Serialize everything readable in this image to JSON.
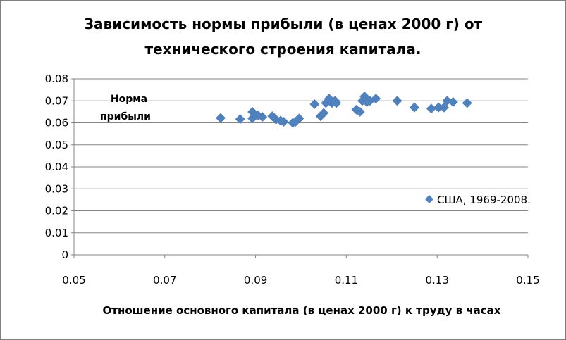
{
  "chart_data": {
    "type": "scatter",
    "title": "Зависимость нормы прибыли (в ценах 2000 г) от",
    "subtitle": "технического строения капитала.",
    "ylabel_lines": [
      "Норма",
      "прибыли"
    ],
    "xlabel": "Отношение основного капитала (в ценах 2000 г) к труду в часах",
    "xlim": [
      0.05,
      0.15
    ],
    "ylim": [
      0,
      0.08
    ],
    "x_ticks": [
      "0.05",
      "0.07",
      "0.09",
      "0.11",
      "0.13",
      "0.15"
    ],
    "y_ticks": [
      "0",
      "0.01",
      "0.02",
      "0.03",
      "0.04",
      "0.05",
      "0.06",
      "0.07",
      "0.08"
    ],
    "grid": "horizontal",
    "legend_position": "right",
    "marker": "diamond",
    "color": "#4f81bd",
    "series": [
      {
        "name": "США, 1969-2008.",
        "points": [
          [
            0.0823,
            0.0622
          ],
          [
            0.0866,
            0.0617
          ],
          [
            0.0893,
            0.062
          ],
          [
            0.0893,
            0.065
          ],
          [
            0.0905,
            0.0635
          ],
          [
            0.0915,
            0.0627
          ],
          [
            0.0937,
            0.063
          ],
          [
            0.0945,
            0.0615
          ],
          [
            0.0955,
            0.061
          ],
          [
            0.0962,
            0.0605
          ],
          [
            0.0982,
            0.06
          ],
          [
            0.0996,
            0.062
          ],
          [
            0.0988,
            0.0605
          ],
          [
            0.103,
            0.0685
          ],
          [
            0.1043,
            0.063
          ],
          [
            0.105,
            0.0645
          ],
          [
            0.1055,
            0.069
          ],
          [
            0.1062,
            0.071
          ],
          [
            0.1068,
            0.069
          ],
          [
            0.1075,
            0.07
          ],
          [
            0.1078,
            0.069
          ],
          [
            0.1122,
            0.066
          ],
          [
            0.113,
            0.065
          ],
          [
            0.1135,
            0.07
          ],
          [
            0.114,
            0.072
          ],
          [
            0.1145,
            0.0695
          ],
          [
            0.1152,
            0.07
          ],
          [
            0.1165,
            0.071
          ],
          [
            0.1212,
            0.07
          ],
          [
            0.125,
            0.067
          ],
          [
            0.1287,
            0.0665
          ],
          [
            0.1303,
            0.067
          ],
          [
            0.1315,
            0.067
          ],
          [
            0.1322,
            0.07
          ],
          [
            0.1335,
            0.0695
          ],
          [
            0.1366,
            0.069
          ]
        ]
      }
    ]
  }
}
